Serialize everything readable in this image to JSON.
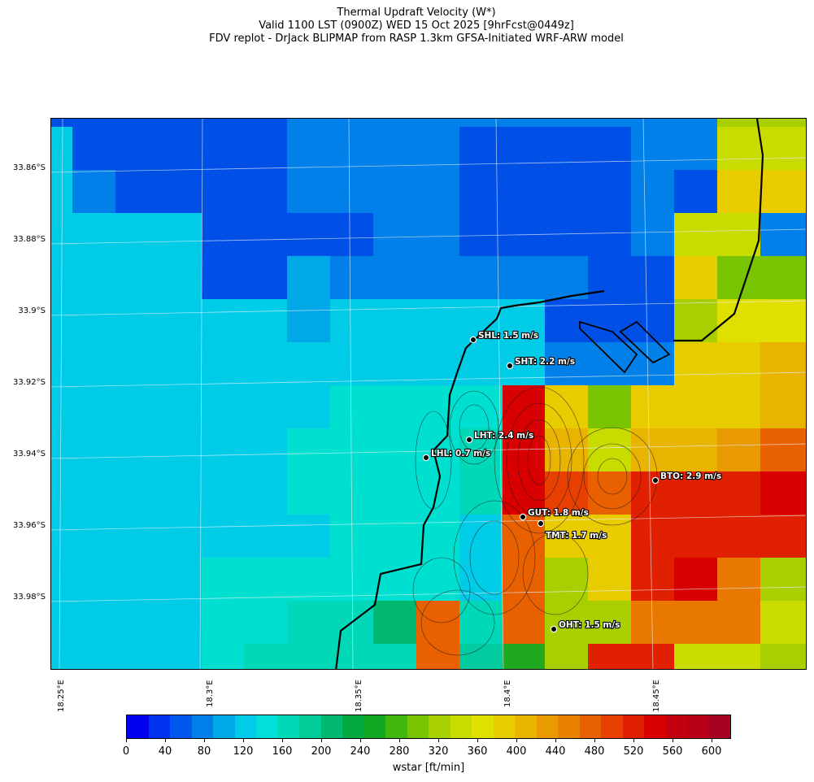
{
  "title": {
    "line1": "Thermal Updraft Velocity (W*)",
    "line2": "Valid 1100 LST (0900Z) WED 15 Oct 2025 [9hrFcst@0449z]",
    "line3": "FDV replot - DrJack BLIPMAP from RASP 1.3km GFSA-Initiated WRF-ARW model"
  },
  "lat_labels": [
    "33.86°S",
    "33.88°S",
    "33.9°S",
    "33.92°S",
    "33.94°S",
    "33.96°S",
    "33.98°S"
  ],
  "lon_labels": [
    "18.25°E",
    "18.3°E",
    "18.35°E",
    "18.4°E",
    "18.45°E"
  ],
  "colorbar": {
    "ticks": [
      "0",
      "40",
      "80",
      "120",
      "160",
      "200",
      "240",
      "280",
      "320",
      "360",
      "400",
      "440",
      "480",
      "520",
      "560",
      "600"
    ],
    "label": "wstar [ft/min]",
    "colors": [
      "#0000ee",
      "#0033ee",
      "#0058ee",
      "#0080e8",
      "#00a8e8",
      "#00cce8",
      "#00e0d8",
      "#00d8b8",
      "#00cc98",
      "#00b870",
      "#00a840",
      "#10a820",
      "#40b810",
      "#78c400",
      "#a8d000",
      "#c8dc00",
      "#e0e000",
      "#e8cc00",
      "#e8b400",
      "#e89a00",
      "#e88000",
      "#e86000",
      "#e84000",
      "#e02000",
      "#d80000",
      "#c40010",
      "#b80018",
      "#a80020"
    ]
  },
  "stations": [
    {
      "code": "SHL",
      "label": "SHL: 1.5 m/s",
      "value_ms": 1.5
    },
    {
      "code": "SHT",
      "label": "SHT: 2.2 m/s",
      "value_ms": 2.2
    },
    {
      "code": "LHT",
      "label": "LHT: 2.4 m/s",
      "value_ms": 2.4
    },
    {
      "code": "LHL",
      "label": "LHL: 0.7 m/s",
      "value_ms": 0.7
    },
    {
      "code": "BTO",
      "label": "BTO: 2.9 m/s",
      "value_ms": 2.9
    },
    {
      "code": "GUT",
      "label": "GUT: 1.8 m/s",
      "value_ms": 1.8
    },
    {
      "code": "TMT",
      "label": "TMT: 1.7 m/s",
      "value_ms": 1.7
    },
    {
      "code": "OHT",
      "label": "OHT: 1.5 m/s",
      "value_ms": 1.5
    }
  ]
}
